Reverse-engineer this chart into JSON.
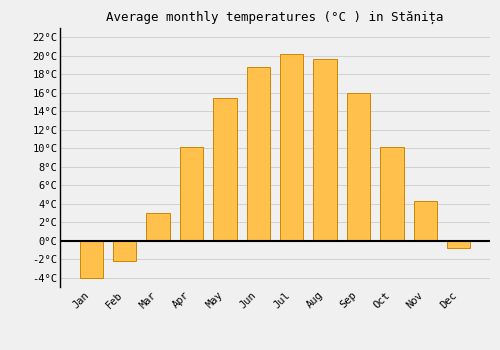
{
  "months": [
    "Jan",
    "Feb",
    "Mar",
    "Apr",
    "May",
    "Jun",
    "Jul",
    "Aug",
    "Sep",
    "Oct",
    "Nov",
    "Dec"
  ],
  "temperatures": [
    -4.0,
    -2.2,
    3.0,
    10.1,
    15.4,
    18.8,
    20.2,
    19.7,
    16.0,
    10.1,
    4.3,
    -0.8
  ],
  "bar_color": "#FFC04C",
  "bar_edge_color": "#CC8800",
  "title": "Average monthly temperatures (°C ) in Stănița",
  "ylim": [
    -5,
    23
  ],
  "yticks": [
    -4,
    -2,
    0,
    2,
    4,
    6,
    8,
    10,
    12,
    14,
    16,
    18,
    20,
    22
  ],
  "background_color": "#f0f0f0",
  "grid_color": "#cccccc",
  "zero_line_color": "#000000",
  "title_fontsize": 9,
  "tick_fontsize": 7.5
}
